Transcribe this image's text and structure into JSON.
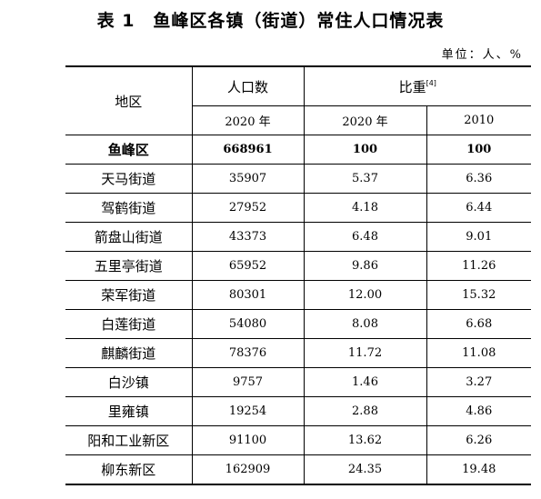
{
  "title": "表 1　鱼峰区各镇（街道）常住人口情况表",
  "unit": "单位：人、%",
  "headers": {
    "area": "地区",
    "population": "人口数",
    "proportion": "比重",
    "proportion_note": "[4]",
    "year_2020_pop": "2020 年",
    "year_2020_share": "2020 年",
    "year_2010_share": "2010"
  },
  "rows": [
    {
      "area": "鱼峰区",
      "pop": "668961",
      "share2020": "100",
      "share2010": "100"
    },
    {
      "area": "天马街道",
      "pop": "35907",
      "share2020": "5.37",
      "share2010": "6.36"
    },
    {
      "area": "驾鹤街道",
      "pop": "27952",
      "share2020": "4.18",
      "share2010": "6.44"
    },
    {
      "area": "箭盘山街道",
      "pop": "43373",
      "share2020": "6.48",
      "share2010": "9.01"
    },
    {
      "area": "五里亭街道",
      "pop": "65952",
      "share2020": "9.86",
      "share2010": "11.26"
    },
    {
      "area": "荣军街道",
      "pop": "80301",
      "share2020": "12.00",
      "share2010": "15.32"
    },
    {
      "area": "白莲街道",
      "pop": "54080",
      "share2020": "8.08",
      "share2010": "6.68"
    },
    {
      "area": "麒麟街道",
      "pop": "78376",
      "share2020": "11.72",
      "share2010": "11.08"
    },
    {
      "area": "白沙镇",
      "pop": "9757",
      "share2020": "1.46",
      "share2010": "3.27"
    },
    {
      "area": "里雍镇",
      "pop": "19254",
      "share2020": "2.88",
      "share2010": "4.86"
    },
    {
      "area": "阳和工业新区",
      "pop": "91100",
      "share2020": "13.62",
      "share2010": "6.26"
    },
    {
      "area": "柳东新区",
      "pop": "162909",
      "share2020": "24.35",
      "share2010": "19.48"
    }
  ]
}
